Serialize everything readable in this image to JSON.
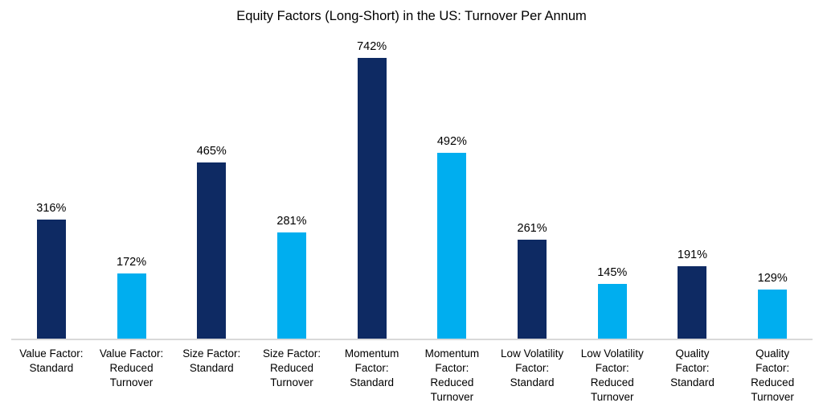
{
  "colors": {
    "navy": "#0E2A63",
    "light_blue": "#00AEEF",
    "axis_line": "#D9D9D9",
    "text": "#000000",
    "background": "#FFFFFF"
  },
  "chart_data": {
    "type": "bar",
    "title": "Equity Factors (Long-Short) in the US: Turnover Per Annum",
    "xlabel": "",
    "ylabel": "",
    "ylim": [
      0,
      800
    ],
    "grid": false,
    "legend": false,
    "y_axis_visible": false,
    "categories": [
      "Value Factor: Standard",
      "Value Factor: Reduced Turnover",
      "Size Factor: Standard",
      "Size Factor: Reduced Turnover",
      "Momentum Factor: Standard",
      "Momentum Factor: Reduced Turnover",
      "Low Volatility Factor: Standard",
      "Low Volatility Factor: Reduced Turnover",
      "Quality Factor: Standard",
      "Quality Factor: Reduced Turnover"
    ],
    "display_labels": [
      "Value Factor:\nStandard",
      "Value Factor:\nReduced\nTurnover",
      "Size Factor:\nStandard",
      "Size Factor:\nReduced\nTurnover",
      "Momentum\nFactor:\nStandard",
      "Momentum\nFactor:\nReduced\nTurnover",
      "Low Volatility\nFactor:\nStandard",
      "Low Volatility\nFactor:\nReduced\nTurnover",
      "Quality\nFactor:\nStandard",
      "Quality\nFactor:\nReduced\nTurnover"
    ],
    "values": [
      316,
      172,
      465,
      281,
      742,
      492,
      261,
      145,
      191,
      129
    ],
    "data_labels": [
      "316%",
      "172%",
      "465%",
      "281%",
      "742%",
      "492%",
      "261%",
      "145%",
      "191%",
      "129%"
    ],
    "bar_colors": [
      "#0E2A63",
      "#00AEEF",
      "#0E2A63",
      "#00AEEF",
      "#0E2A63",
      "#00AEEF",
      "#0E2A63",
      "#00AEEF",
      "#0E2A63",
      "#00AEEF"
    ]
  }
}
